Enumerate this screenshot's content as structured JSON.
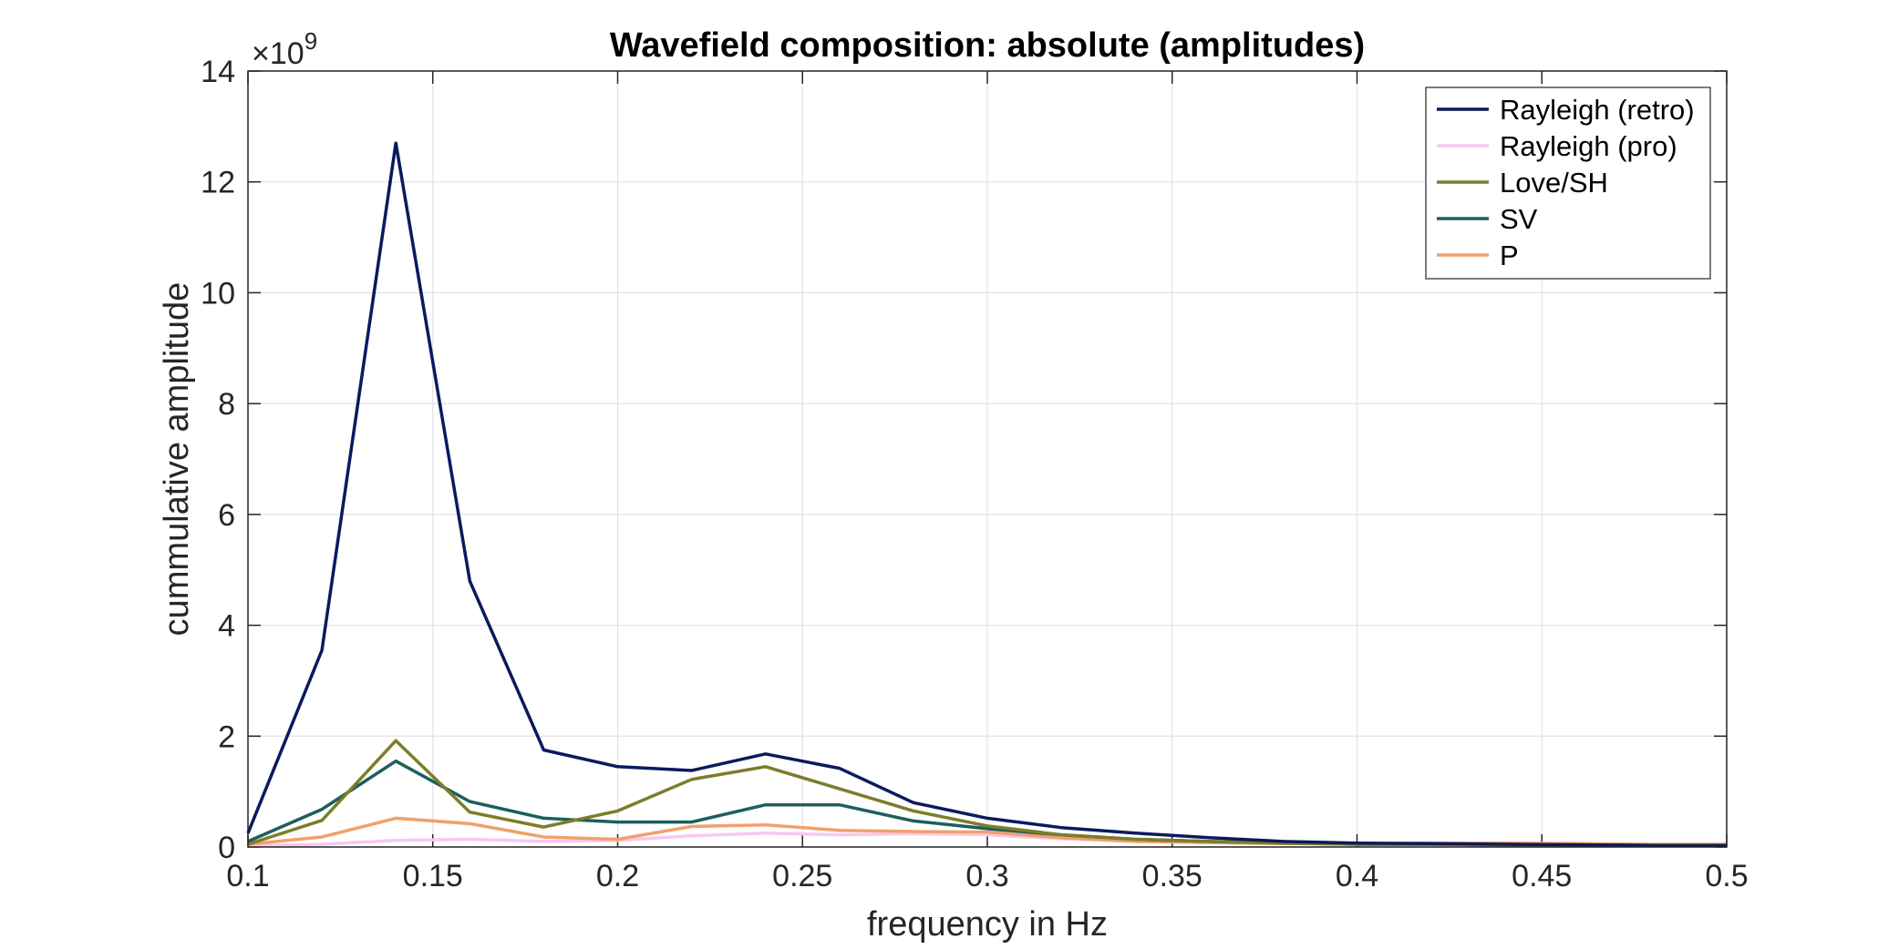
{
  "chart_data": {
    "type": "line",
    "title": "Wavefield composition: absolute (amplitudes)",
    "xlabel": "frequency in Hz",
    "ylabel": "cummulative amplitude",
    "y_exponent_label": "×10",
    "y_exponent_power": "9",
    "xlim": [
      0.1,
      0.5
    ],
    "ylim": [
      0,
      14
    ],
    "grid": true,
    "legend_position": "top-right",
    "x_ticks": [
      "0.1",
      "0.15",
      "0.2",
      "0.25",
      "0.3",
      "0.35",
      "0.4",
      "0.45",
      "0.5"
    ],
    "y_ticks": [
      "0",
      "2",
      "4",
      "6",
      "8",
      "10",
      "12",
      "14"
    ],
    "x": [
      0.1,
      0.12,
      0.14,
      0.16,
      0.18,
      0.2,
      0.22,
      0.24,
      0.26,
      0.28,
      0.3,
      0.32,
      0.34,
      0.36,
      0.38,
      0.4,
      0.42,
      0.44,
      0.46,
      0.48,
      0.5
    ],
    "series": [
      {
        "name": "Rayleigh (retro)",
        "color": "#0b1a5c",
        "values": [
          0.25,
          3.55,
          12.7,
          4.8,
          1.75,
          1.45,
          1.38,
          1.68,
          1.42,
          0.8,
          0.52,
          0.35,
          0.25,
          0.17,
          0.1,
          0.07,
          0.06,
          0.05,
          0.04,
          0.03,
          0.03
        ]
      },
      {
        "name": "Rayleigh (pro)",
        "color": "#f7c8f0",
        "values": [
          0.02,
          0.05,
          0.12,
          0.14,
          0.1,
          0.12,
          0.2,
          0.25,
          0.22,
          0.24,
          0.22,
          0.15,
          0.1,
          0.08,
          0.06,
          0.05,
          0.05,
          0.04,
          0.04,
          0.03,
          0.03
        ]
      },
      {
        "name": "Love/SH",
        "color": "#7d7d2a",
        "values": [
          0.05,
          0.48,
          1.92,
          0.63,
          0.36,
          0.65,
          1.22,
          1.45,
          1.05,
          0.65,
          0.38,
          0.22,
          0.14,
          0.1,
          0.07,
          0.05,
          0.05,
          0.04,
          0.04,
          0.03,
          0.03
        ]
      },
      {
        "name": "SV",
        "color": "#1d5e5e",
        "values": [
          0.1,
          0.68,
          1.55,
          0.82,
          0.52,
          0.45,
          0.45,
          0.76,
          0.76,
          0.47,
          0.33,
          0.22,
          0.14,
          0.1,
          0.07,
          0.05,
          0.05,
          0.04,
          0.04,
          0.03,
          0.03
        ]
      },
      {
        "name": "P",
        "color": "#f2a06a",
        "values": [
          0.05,
          0.18,
          0.52,
          0.42,
          0.18,
          0.14,
          0.37,
          0.4,
          0.3,
          0.28,
          0.27,
          0.17,
          0.1,
          0.08,
          0.06,
          0.06,
          0.07,
          0.07,
          0.06,
          0.05,
          0.05
        ]
      }
    ]
  }
}
